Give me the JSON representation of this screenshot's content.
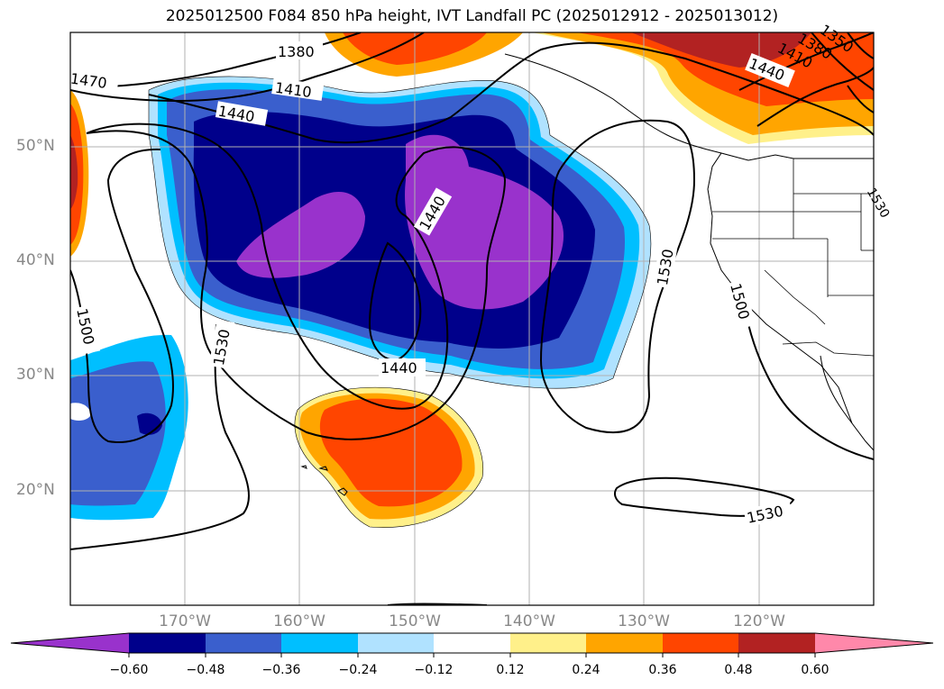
{
  "title": "2025012500 F084 850 hPa height, IVT Landfall PC (2025012912 - 2025013012)",
  "latitude_labels": [
    "50°N",
    "40°N",
    "30°N",
    "20°N"
  ],
  "longitude_labels": [
    "170°W",
    "160°W",
    "150°W",
    "140°W",
    "130°W",
    "120°W"
  ],
  "contour_labels": [
    "1380",
    "1470",
    "1410",
    "1440",
    "1440",
    "1440",
    "1530",
    "1500",
    "1530",
    "1530",
    "1500",
    "1440",
    "1410",
    "1380",
    "1350",
    "1530"
  ],
  "colorbar": {
    "ticks": [
      "−0.60",
      "−0.48",
      "−0.36",
      "−0.24",
      "−0.12",
      "0.12",
      "0.24",
      "0.36",
      "0.48",
      "0.60"
    ],
    "colors": [
      "#9932cc",
      "#00008b",
      "#3a5fcd",
      "#00bfff",
      "#b0e2ff",
      "#ffffff",
      "#fff08a",
      "#ffa500",
      "#ff4500",
      "#b22222",
      "#ff88aa"
    ]
  }
}
